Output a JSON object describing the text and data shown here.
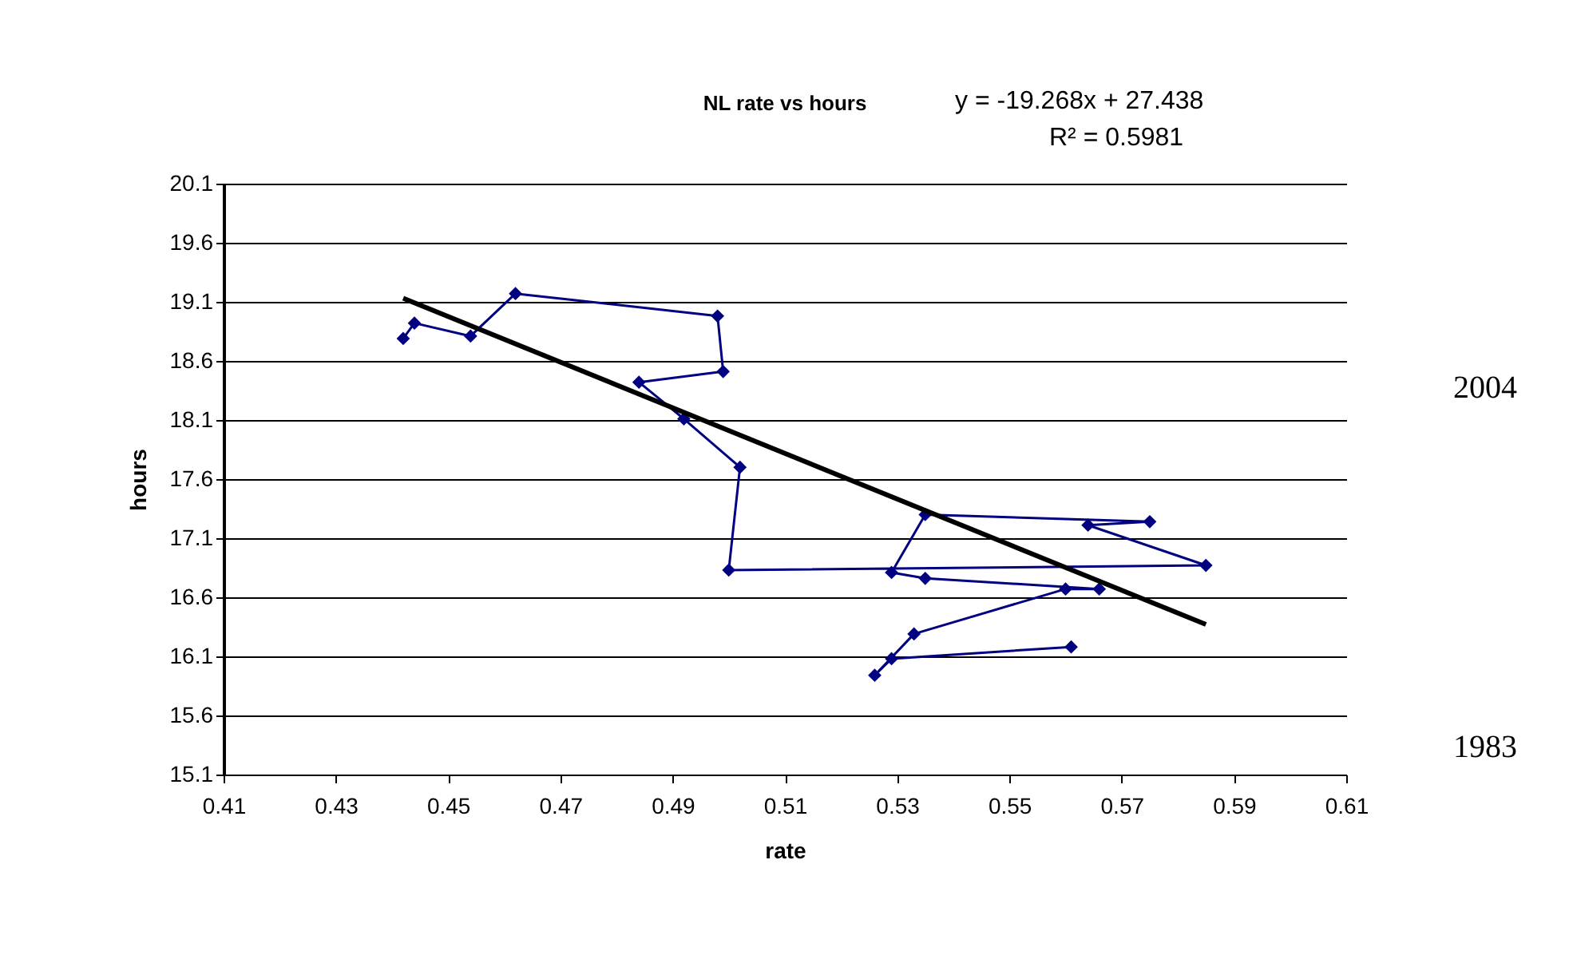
{
  "chart_data": {
    "type": "line",
    "title": "NL rate vs hours",
    "xlabel": "rate",
    "ylabel": "hours",
    "xlim": [
      0.41,
      0.61
    ],
    "xticks": [
      0.41,
      0.43,
      0.45,
      0.47,
      0.49,
      0.51,
      0.53,
      0.55,
      0.57,
      0.59,
      0.61
    ],
    "ylim": [
      15.1,
      20.1
    ],
    "yticks": [
      15.1,
      15.6,
      16.1,
      16.6,
      17.1,
      17.6,
      18.1,
      18.6,
      19.1,
      19.6,
      20.1
    ],
    "grid": "y",
    "marker": "diamond",
    "series": [
      {
        "color": "#000080",
        "x": [
          0.561,
          0.529,
          0.526,
          0.533,
          0.56,
          0.566,
          0.535,
          0.529,
          0.535,
          0.575,
          0.564,
          0.585,
          0.5,
          0.502,
          0.492,
          0.484,
          0.499,
          0.498,
          0.462,
          0.454,
          0.444,
          0.442
        ],
        "values": [
          16.18,
          16.08,
          15.94,
          16.29,
          16.67,
          16.67,
          16.76,
          16.81,
          17.3,
          17.24,
          17.21,
          16.87,
          16.83,
          17.7,
          18.11,
          18.42,
          18.51,
          18.98,
          19.17,
          18.81,
          18.92,
          18.79
        ]
      },
      {
        "type": "line",
        "marker": "none",
        "color": "#000000",
        "x": [
          0.442,
          0.585
        ],
        "values": [
          19.13,
          16.37
        ]
      }
    ],
    "annotations": [
      "y = -19.268x + 27.438",
      "R² = 0.5981",
      "2004",
      "1983"
    ]
  }
}
